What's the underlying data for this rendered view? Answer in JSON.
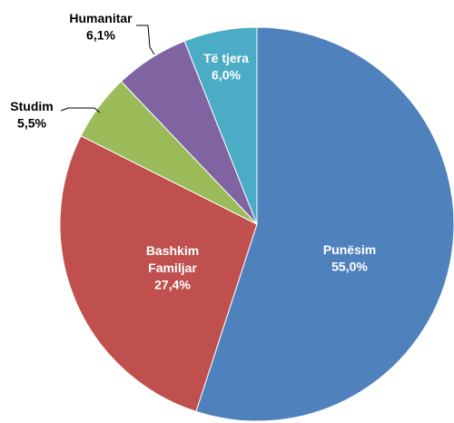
{
  "chart_data": {
    "type": "pie",
    "categories": [
      "Punësim",
      "Bashkim Familjar",
      "Studim",
      "Humanitar",
      "Të tjera"
    ],
    "values": [
      55.0,
      27.4,
      5.5,
      6.1,
      6.0
    ],
    "value_labels": [
      "55,0%",
      "27,4%",
      "5,5%",
      "6,1%",
      "6,0%"
    ],
    "colors": [
      "#4f81bd",
      "#c0504d",
      "#9bbb59",
      "#8064a2",
      "#4bacc6"
    ]
  }
}
